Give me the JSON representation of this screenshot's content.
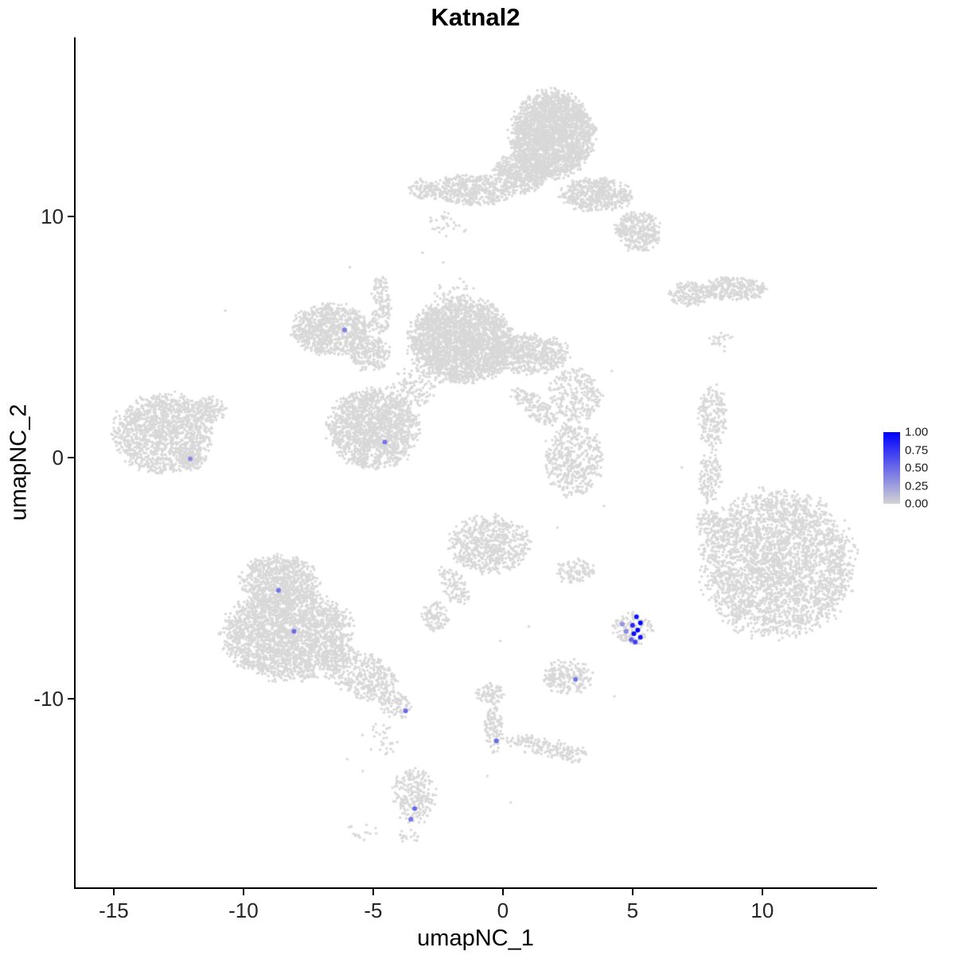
{
  "title": "Katnal2",
  "chart_data": {
    "type": "scatter",
    "title": "Katnal2",
    "xlabel": "umapNC_1",
    "ylabel": "umapNC_2",
    "xlim": [
      -16.47,
      14.36
    ],
    "ylim": [
      -17.82,
      17.43
    ],
    "x_ticks": [
      "-15",
      "-10",
      "-5",
      "0",
      "5",
      "10"
    ],
    "x_tick_values": [
      -15,
      -10,
      -5,
      0,
      5,
      10
    ],
    "y_ticks": [
      "10",
      "0",
      "-10"
    ],
    "y_tick_values": [
      10,
      0,
      -10
    ],
    "grid": "off",
    "legend": {
      "position": "right",
      "ticks": [
        "1.00",
        "0.75",
        "0.50",
        "0.25",
        "0.00"
      ],
      "tick_values": [
        1.0,
        0.75,
        0.5,
        0.25,
        0.0
      ]
    },
    "colors": {
      "background_points": "#D8D8D8",
      "scale_low": "#D3D3D3",
      "scale_high": "#0000FF"
    },
    "background_clusters": [
      {
        "cluster": "top-main",
        "cx": 1.9,
        "cy": 13.4,
        "rx": 1.55,
        "ry": 1.75,
        "rot": 0,
        "n": 2400
      },
      {
        "cluster": "top-neck",
        "cx": 0.7,
        "cy": 11.8,
        "rx": 1.0,
        "ry": 0.85,
        "rot": 0,
        "n": 500
      },
      {
        "cluster": "top-left-wing",
        "cx": -1.2,
        "cy": 11.1,
        "rx": 1.6,
        "ry": 0.62,
        "rot": 0,
        "n": 480
      },
      {
        "cluster": "top-left-tip",
        "cx": -3.1,
        "cy": 11.15,
        "rx": 0.55,
        "ry": 0.38,
        "rot": 0,
        "n": 80
      },
      {
        "cluster": "top-right-wing",
        "cx": 3.6,
        "cy": 10.9,
        "rx": 1.35,
        "ry": 0.68,
        "rot": 0,
        "n": 500
      },
      {
        "cluster": "top-right-low",
        "cx": 5.2,
        "cy": 9.4,
        "rx": 0.85,
        "ry": 0.8,
        "rot": 0,
        "n": 330
      },
      {
        "cluster": "top-sparse-below",
        "cx": -2.1,
        "cy": 9.7,
        "rx": 0.8,
        "ry": 0.5,
        "rot": 0,
        "n": 30
      },
      {
        "cluster": "right-strip-left",
        "cx": 7.2,
        "cy": 6.8,
        "rx": 0.8,
        "ry": 0.5,
        "rot": 0,
        "n": 170
      },
      {
        "cluster": "right-strip-right",
        "cx": 8.85,
        "cy": 7.0,
        "rx": 1.25,
        "ry": 0.5,
        "rot": 0,
        "n": 280
      },
      {
        "cluster": "right-strip-below",
        "cx": 8.4,
        "cy": 4.8,
        "rx": 0.5,
        "ry": 0.4,
        "rot": 0,
        "n": 22
      },
      {
        "cluster": "central-left-arm",
        "cx": -6.6,
        "cy": 5.3,
        "rx": 1.5,
        "ry": 1.05,
        "rot": 0,
        "n": 850
      },
      {
        "cluster": "central-bridge",
        "cx": -5.1,
        "cy": 4.3,
        "rx": 0.75,
        "ry": 0.7,
        "rot": 0,
        "n": 200
      },
      {
        "cluster": "central-stem-up",
        "cx": -4.7,
        "cy": 6.3,
        "rx": 0.36,
        "ry": 1.3,
        "rot": 0,
        "n": 140
      },
      {
        "cluster": "central-main",
        "cx": -1.6,
        "cy": 4.85,
        "rx": 1.95,
        "ry": 1.7,
        "rot": 0,
        "n": 2500
      },
      {
        "cluster": "central-right-ext",
        "cx": 1.0,
        "cy": 4.3,
        "rx": 1.5,
        "ry": 0.8,
        "rot": 0,
        "n": 600
      },
      {
        "cluster": "central-lower-blob",
        "cx": -5.0,
        "cy": 1.2,
        "rx": 1.7,
        "ry": 1.6,
        "rot": 0,
        "n": 1500
      },
      {
        "cluster": "central-scatter-bridge",
        "cx": -3.6,
        "cy": 2.9,
        "rx": 0.95,
        "ry": 0.95,
        "rot": 0,
        "n": 130
      },
      {
        "cluster": "central-diag-tail",
        "cx": 1.2,
        "cy": 2.1,
        "rx": 1.15,
        "ry": 0.42,
        "rot": -38,
        "n": 150
      },
      {
        "cluster": "central-sparse-top",
        "cx": -1.9,
        "cy": 6.9,
        "rx": 0.85,
        "ry": 0.5,
        "rot": 0,
        "n": 35
      },
      {
        "cluster": "far-left-main",
        "cx": -13.1,
        "cy": 1.0,
        "rx": 1.9,
        "ry": 1.6,
        "rot": 0,
        "n": 1400
      },
      {
        "cluster": "far-left-tip",
        "cx": -11.3,
        "cy": 2.0,
        "rx": 0.65,
        "ry": 0.5,
        "rot": 0,
        "n": 120
      },
      {
        "cluster": "far-left-bottom-tip",
        "cx": -12.0,
        "cy": -0.1,
        "rx": 0.5,
        "ry": 0.4,
        "rot": 0,
        "n": 90
      },
      {
        "cluster": "mid-column-upper",
        "cx": 2.8,
        "cy": 2.6,
        "rx": 1.0,
        "ry": 1.05,
        "rot": 0,
        "n": 260
      },
      {
        "cluster": "mid-column-lower",
        "cx": 2.7,
        "cy": -0.1,
        "rx": 1.15,
        "ry": 1.45,
        "rot": 0,
        "n": 450
      },
      {
        "cluster": "mid-column-bridge",
        "cx": 2.6,
        "cy": 1.3,
        "rx": 0.4,
        "ry": 0.5,
        "rot": 0,
        "n": 25
      },
      {
        "cluster": "right-thin-upper",
        "cx": 8.1,
        "cy": 1.7,
        "rx": 0.55,
        "ry": 1.3,
        "rot": 0,
        "n": 200
      },
      {
        "cluster": "right-thin-lower",
        "cx": 8.0,
        "cy": -0.85,
        "rx": 0.42,
        "ry": 1.05,
        "rot": 0,
        "n": 120
      },
      {
        "cluster": "right-thin-trail",
        "cx": 8.3,
        "cy": -3.2,
        "rx": 0.4,
        "ry": 0.7,
        "rot": 0,
        "n": 20
      },
      {
        "cluster": "big-right-main",
        "cx": 10.6,
        "cy": -4.4,
        "rx": 2.85,
        "ry": 2.95,
        "rot": 0,
        "n": 3000
      },
      {
        "cluster": "big-right-appendage",
        "cx": 7.95,
        "cy": -2.7,
        "rx": 0.5,
        "ry": 0.6,
        "rot": 0,
        "n": 70
      },
      {
        "cluster": "center-small-main",
        "cx": -0.5,
        "cy": -3.6,
        "rx": 1.55,
        "ry": 1.15,
        "rot": 0,
        "n": 650
      },
      {
        "cluster": "center-small-tail",
        "cx": -1.9,
        "cy": -5.3,
        "rx": 0.5,
        "ry": 0.85,
        "rot": 25,
        "n": 100
      },
      {
        "cluster": "center-small-blob",
        "cx": -2.6,
        "cy": -6.6,
        "rx": 0.55,
        "ry": 0.6,
        "rot": 0,
        "n": 100
      },
      {
        "cluster": "small-pair",
        "cx": 2.8,
        "cy": -4.7,
        "rx": 0.75,
        "ry": 0.5,
        "rot": 0,
        "n": 100
      },
      {
        "cluster": "bottom-left-upper",
        "cx": -8.6,
        "cy": -5.1,
        "rx": 1.5,
        "ry": 1.05,
        "rot": 0,
        "n": 750
      },
      {
        "cluster": "bottom-left-main",
        "cx": -8.3,
        "cy": -7.3,
        "rx": 2.4,
        "ry": 1.85,
        "rot": 0,
        "n": 2400
      },
      {
        "cluster": "bottom-left-diag",
        "cx": -5.5,
        "cy": -9.0,
        "rx": 1.6,
        "ry": 0.9,
        "rot": -28,
        "n": 450
      },
      {
        "cluster": "bottom-left-tip",
        "cx": -4.1,
        "cy": -10.3,
        "rx": 0.6,
        "ry": 0.5,
        "rot": 0,
        "n": 80
      },
      {
        "cluster": "bottom-left-sparse",
        "cx": -4.7,
        "cy": -11.7,
        "rx": 0.7,
        "ry": 0.8,
        "rot": 0,
        "n": 30
      },
      {
        "cluster": "expressing-base",
        "cx": 5.0,
        "cy": -7.1,
        "rx": 0.75,
        "ry": 0.65,
        "rot": 0,
        "n": 130
      },
      {
        "cluster": "small-right-low",
        "cx": 2.5,
        "cy": -9.1,
        "rx": 0.95,
        "ry": 0.7,
        "rot": 0,
        "n": 200
      },
      {
        "cluster": "y-shape-top",
        "cx": -0.45,
        "cy": -9.8,
        "rx": 0.55,
        "ry": 0.45,
        "rot": 0,
        "n": 80
      },
      {
        "cluster": "y-shape-stem",
        "cx": -0.35,
        "cy": -11.2,
        "rx": 0.34,
        "ry": 1.0,
        "rot": 0,
        "n": 110
      },
      {
        "cluster": "y-shape-branch",
        "cx": 1.4,
        "cy": -11.95,
        "rx": 1.35,
        "ry": 0.38,
        "rot": -10,
        "n": 130
      },
      {
        "cluster": "y-shape-end",
        "cx": 2.7,
        "cy": -12.3,
        "rx": 0.5,
        "ry": 0.4,
        "rot": 0,
        "n": 55
      },
      {
        "cluster": "bottom-small",
        "cx": -3.4,
        "cy": -14.0,
        "rx": 0.8,
        "ry": 1.15,
        "rot": 0,
        "n": 240
      },
      {
        "cluster": "bottom-small-below",
        "cx": -3.6,
        "cy": -15.7,
        "rx": 0.4,
        "ry": 0.3,
        "rot": 0,
        "n": 20
      },
      {
        "cluster": "bottom-sparse-left",
        "cx": -5.4,
        "cy": -15.5,
        "rx": 0.6,
        "ry": 0.4,
        "rot": 0,
        "n": 16
      }
    ],
    "single_points": [
      [
        -10.7,
        6.1
      ],
      [
        -4.9,
        7.4
      ],
      [
        -3.1,
        8.5
      ],
      [
        -2.3,
        8.1
      ],
      [
        -5.9,
        7.9
      ],
      [
        3.9,
        -2.0
      ],
      [
        3.4,
        -1.2
      ],
      [
        2.1,
        -2.9
      ],
      [
        -6.0,
        -12.5
      ],
      [
        -5.4,
        -13.0
      ],
      [
        -0.6,
        -13.2
      ],
      [
        0.3,
        -14.3
      ],
      [
        4.3,
        -9.9
      ],
      [
        -0.1,
        -7.6
      ],
      [
        1.0,
        -7.0
      ],
      [
        4.2,
        3.6
      ],
      [
        6.9,
        -0.4
      ]
    ],
    "expressing_cells": [
      {
        "x": -6.1,
        "y": 5.3,
        "value": 0.4
      },
      {
        "x": -4.55,
        "y": 0.65,
        "value": 0.45
      },
      {
        "x": -12.05,
        "y": -0.05,
        "value": 0.35
      },
      {
        "x": -8.65,
        "y": -5.5,
        "value": 0.45
      },
      {
        "x": -8.05,
        "y": -7.2,
        "value": 0.5
      },
      {
        "x": -3.75,
        "y": -10.5,
        "value": 0.5
      },
      {
        "x": 2.8,
        "y": -9.2,
        "value": 0.45
      },
      {
        "x": -0.25,
        "y": -11.75,
        "value": 0.5
      },
      {
        "x": -3.4,
        "y": -14.55,
        "value": 0.5
      },
      {
        "x": -3.55,
        "y": -15.0,
        "value": 0.45
      },
      {
        "x": 4.6,
        "y": -6.9,
        "value": 0.3
      },
      {
        "x": 4.75,
        "y": -7.2,
        "value": 0.35
      },
      {
        "x": 5.15,
        "y": -6.6,
        "value": 0.9
      },
      {
        "x": 5.3,
        "y": -6.85,
        "value": 1.0
      },
      {
        "x": 5.0,
        "y": -6.95,
        "value": 0.8
      },
      {
        "x": 5.2,
        "y": -7.15,
        "value": 1.0
      },
      {
        "x": 5.05,
        "y": -7.3,
        "value": 0.95
      },
      {
        "x": 5.3,
        "y": -7.45,
        "value": 0.9
      },
      {
        "x": 5.1,
        "y": -7.65,
        "value": 0.7
      },
      {
        "x": 4.95,
        "y": -7.55,
        "value": 0.55
      }
    ]
  }
}
